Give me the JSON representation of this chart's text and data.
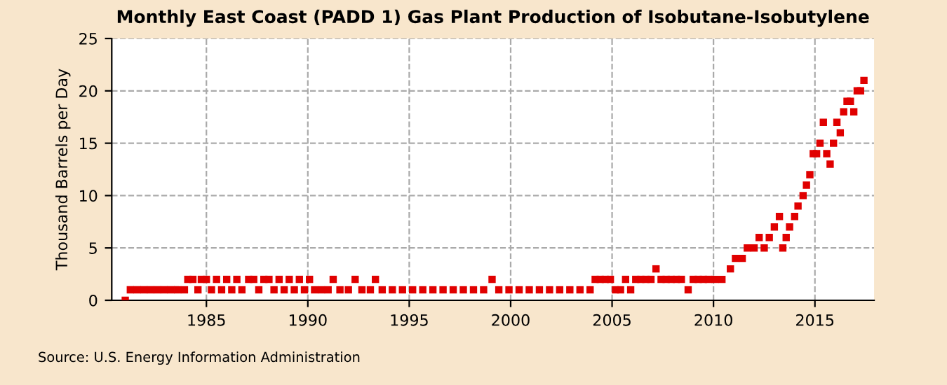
{
  "chart_data": {
    "type": "scatter",
    "title": "Monthly East Coast (PADD 1) Gas Plant Production of Isobutane-Isobutylene",
    "ylabel": "Thousand Barrels per Day",
    "annotations": [
      "Source: U.S. Energy Information Administration"
    ],
    "x": [
      "1981-01",
      "1981-04",
      "1981-08",
      "1981-12",
      "1982-04",
      "1982-08",
      "1982-12",
      "1983-04",
      "1983-08",
      "1983-12",
      "1984-02",
      "1984-05",
      "1984-08",
      "1984-10",
      "1985-01",
      "1985-04",
      "1985-07",
      "1985-10",
      "1986-01",
      "1986-04",
      "1986-07",
      "1986-10",
      "1987-02",
      "1987-05",
      "1987-08",
      "1987-11",
      "1988-02",
      "1988-05",
      "1988-08",
      "1988-11",
      "1989-02",
      "1989-05",
      "1989-08",
      "1989-11",
      "1990-02",
      "1990-05",
      "1990-09",
      "1991-01",
      "1991-04",
      "1991-08",
      "1992-01",
      "1992-05",
      "1992-09",
      "1993-02",
      "1993-05",
      "1993-09",
      "1994-03",
      "1994-09",
      "1995-03",
      "1995-09",
      "1996-03",
      "1996-09",
      "1997-03",
      "1997-09",
      "1998-03",
      "1998-09",
      "1999-02",
      "1999-06",
      "1999-12",
      "2000-06",
      "2000-12",
      "2001-06",
      "2001-12",
      "2002-06",
      "2002-12",
      "2003-06",
      "2003-12",
      "2004-03",
      "2004-06",
      "2004-09",
      "2004-12",
      "2005-03",
      "2005-06",
      "2005-09",
      "2005-12",
      "2006-03",
      "2006-06",
      "2006-09",
      "2006-12",
      "2007-03",
      "2007-06",
      "2007-09",
      "2007-12",
      "2008-03",
      "2008-06",
      "2008-10",
      "2009-01",
      "2009-04",
      "2009-07",
      "2009-10",
      "2010-02",
      "2010-06",
      "2010-11",
      "2011-02",
      "2011-06",
      "2011-09",
      "2012-01",
      "2012-04",
      "2012-07",
      "2012-10",
      "2013-01",
      "2013-04",
      "2013-06",
      "2013-08",
      "2013-10",
      "2014-01",
      "2014-03",
      "2014-06",
      "2014-08",
      "2014-10",
      "2014-12",
      "2015-02",
      "2015-04",
      "2015-06",
      "2015-08",
      "2015-10",
      "2015-12",
      "2016-02",
      "2016-04",
      "2016-06",
      "2016-08",
      "2016-10",
      "2016-12",
      "2017-02",
      "2017-04",
      "2017-06"
    ],
    "series": [
      {
        "color": "#e00000",
        "values": [
          0,
          1,
          1,
          1,
          1,
          1,
          1,
          1,
          1,
          1,
          2,
          2,
          1,
          2,
          2,
          1,
          2,
          1,
          2,
          1,
          2,
          1,
          2,
          2,
          1,
          2,
          2,
          1,
          2,
          1,
          2,
          1,
          2,
          1,
          2,
          1,
          1,
          1,
          2,
          1,
          1,
          2,
          1,
          1,
          2,
          1,
          1,
          1,
          1,
          1,
          1,
          1,
          1,
          1,
          1,
          1,
          2,
          1,
          1,
          1,
          1,
          1,
          1,
          1,
          1,
          1,
          1,
          2,
          2,
          2,
          2,
          1,
          1,
          2,
          1,
          2,
          2,
          2,
          2,
          3,
          2,
          2,
          2,
          2,
          2,
          1,
          2,
          2,
          2,
          2,
          2,
          2,
          3,
          4,
          4,
          5,
          5,
          6,
          5,
          6,
          7,
          8,
          5,
          6,
          7,
          8,
          9,
          10,
          11,
          12,
          14,
          14,
          15,
          17,
          14,
          13,
          15,
          17,
          16,
          18,
          19,
          19,
          18,
          20,
          20,
          21
        ]
      }
    ],
    "marker": "square",
    "xlim": [
      "1980-05",
      "2017-12"
    ],
    "xticks": [
      "1985",
      "1990",
      "1995",
      "2000",
      "2005",
      "2010",
      "2015"
    ],
    "ylim": [
      0,
      25
    ],
    "yticks": [
      0,
      5,
      10,
      15,
      20,
      25
    ],
    "grid": true
  }
}
